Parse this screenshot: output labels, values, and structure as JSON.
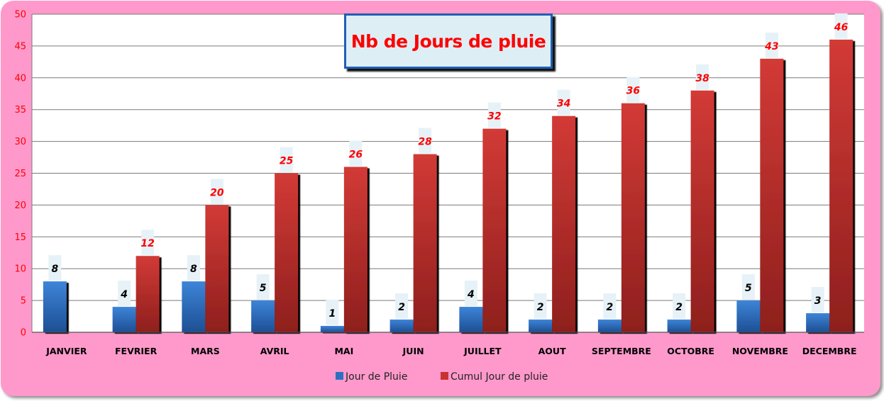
{
  "chart_data": {
    "type": "bar",
    "title": "Nb de Jours de pluie",
    "categories": [
      "JANVIER",
      "FEVRIER",
      "MARS",
      "AVRIL",
      "MAI",
      "JUIN",
      "JUILLET",
      "AOUT",
      "SEPTEMBRE",
      "OCTOBRE",
      "NOVEMBRE",
      "DECEMBRE"
    ],
    "series": [
      {
        "name": "Jour de Pluie",
        "values": [
          8,
          4,
          8,
          5,
          1,
          2,
          4,
          2,
          2,
          2,
          5,
          3
        ],
        "color": "#2e6fc2"
      },
      {
        "name": "Cumul Jour de pluie",
        "values": [
          null,
          12,
          20,
          25,
          26,
          28,
          32,
          34,
          36,
          38,
          43,
          46
        ],
        "color": "#c83230"
      }
    ],
    "ylim": [
      0,
      50
    ],
    "yticks": [
      0,
      5,
      10,
      15,
      20,
      25,
      30,
      35,
      40,
      45,
      50
    ],
    "grid": true,
    "legend_position": "bottom",
    "colors": {
      "background": "#ff99cc",
      "plot": "#ffffff",
      "axis_labels": "#ff0000"
    }
  }
}
